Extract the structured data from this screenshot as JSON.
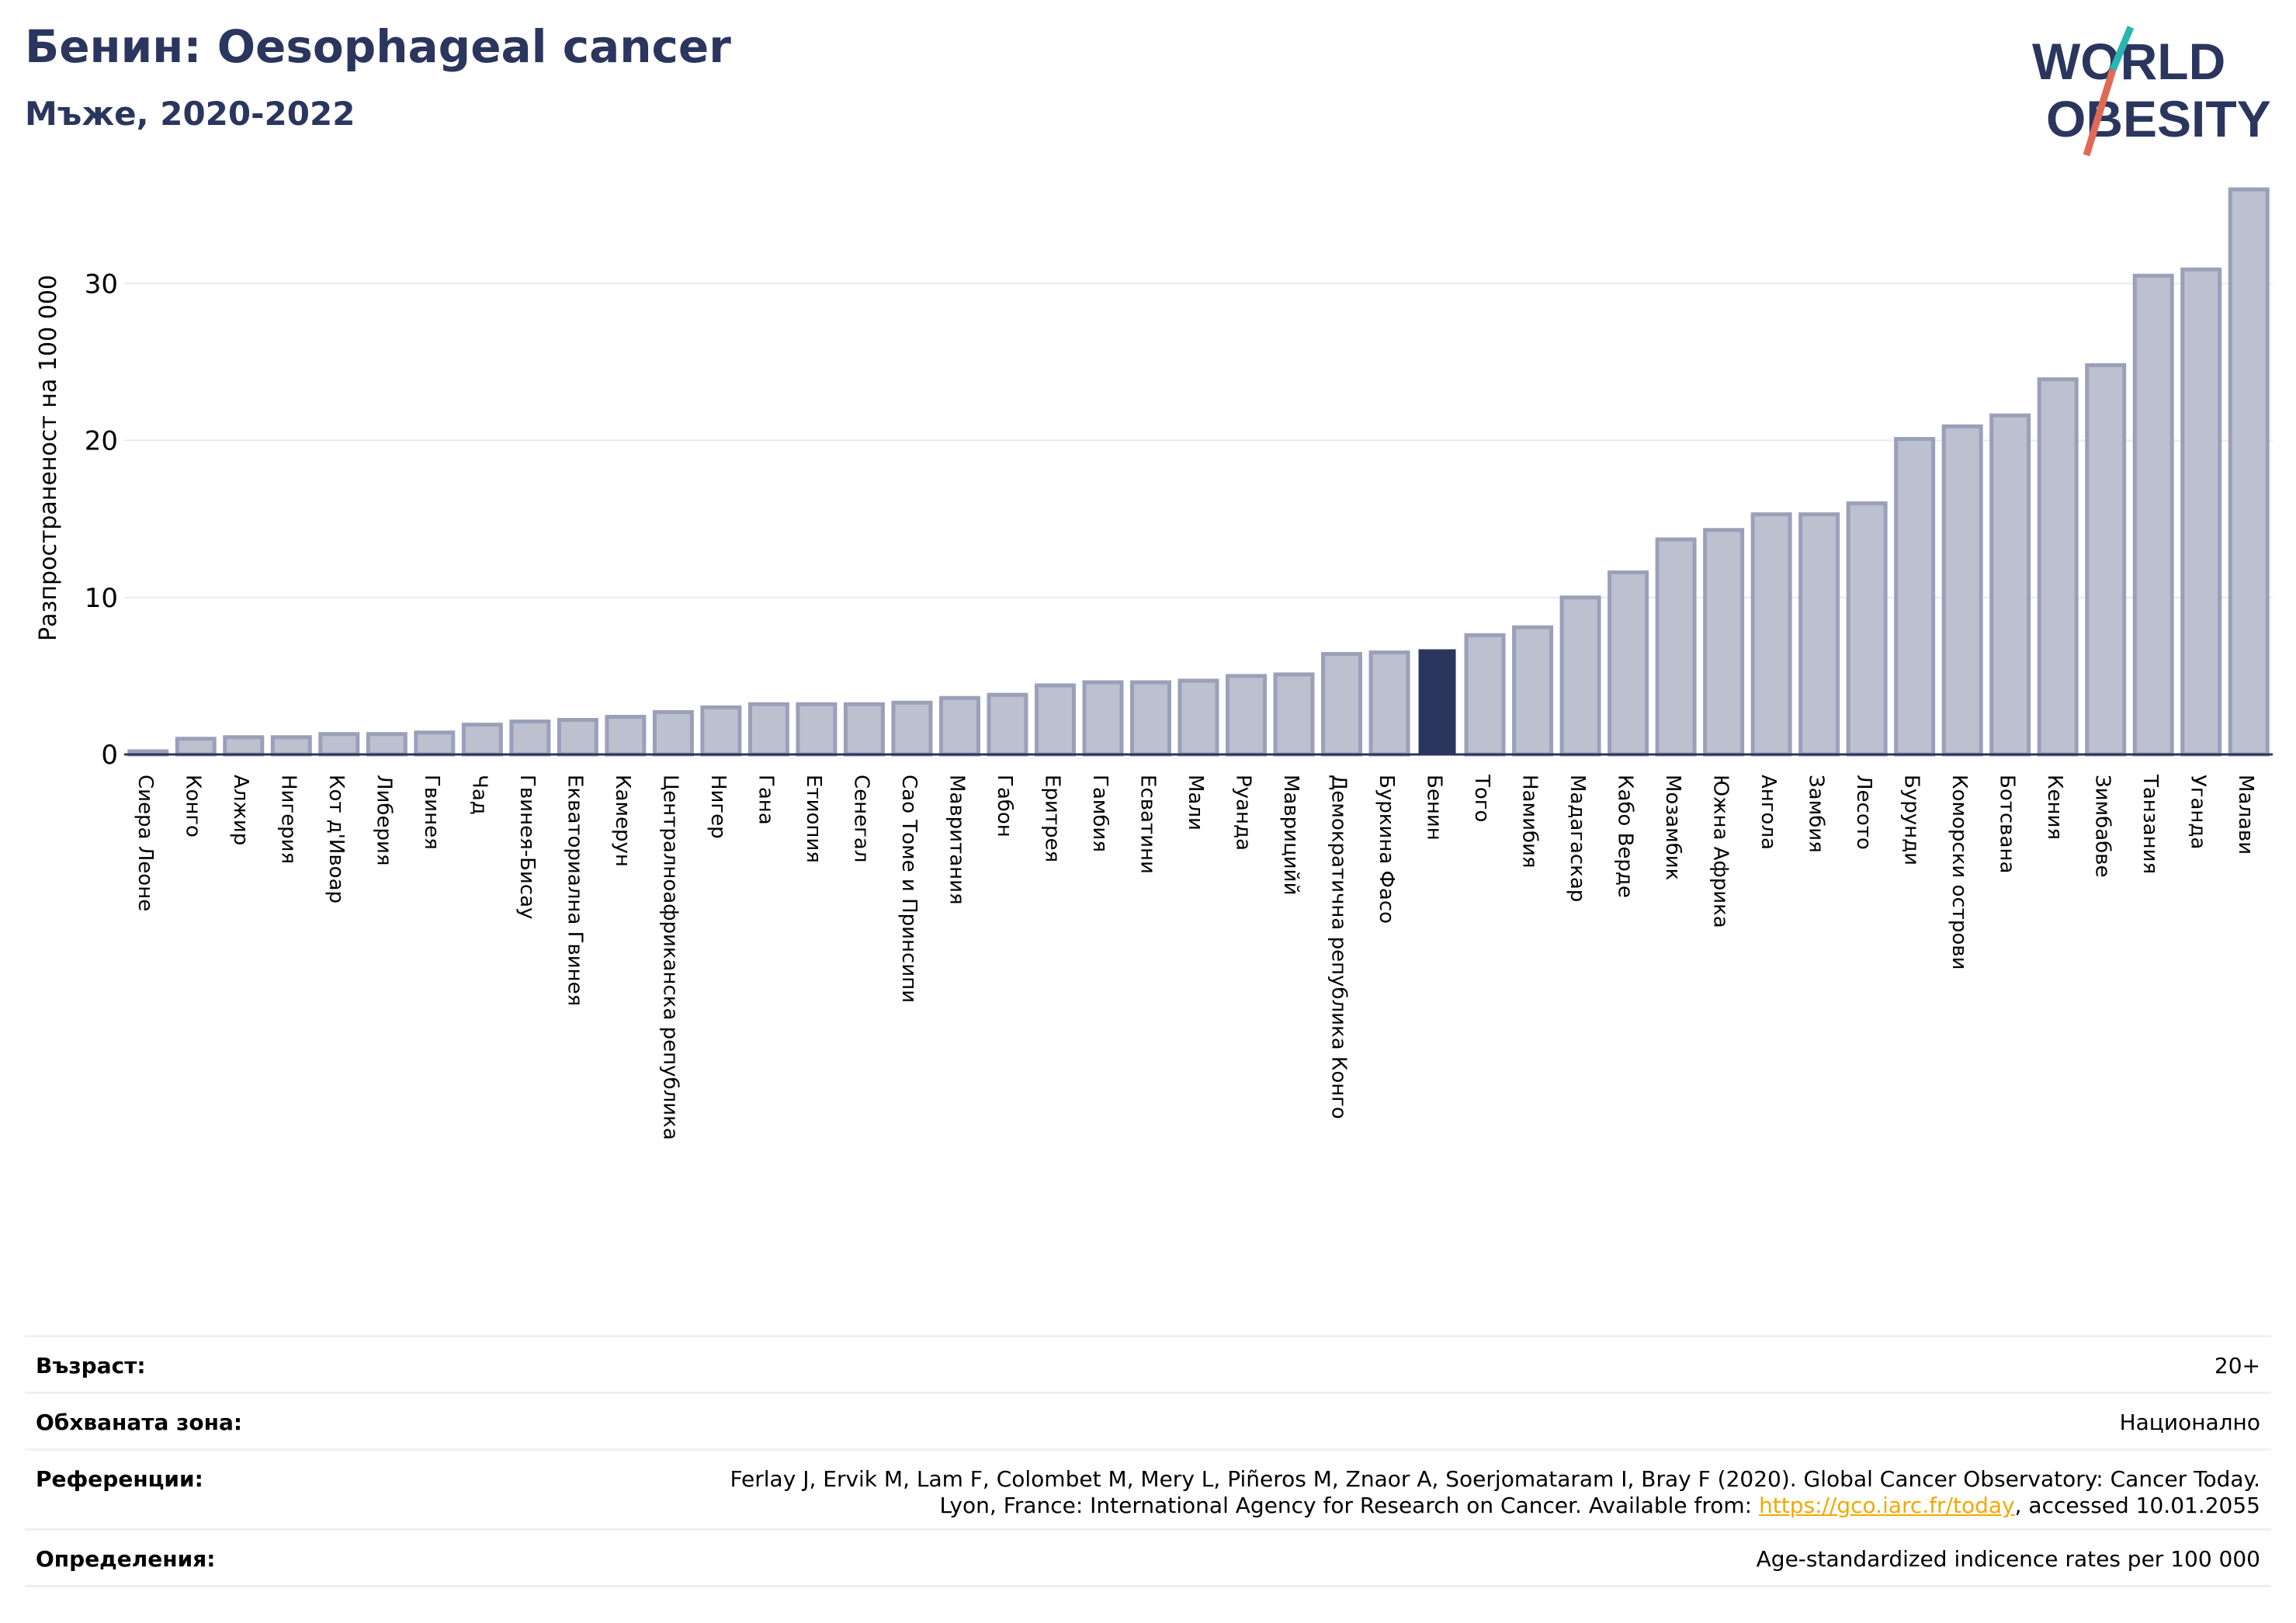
{
  "header": {
    "title": "Бенин: Oesophageal cancer",
    "subtitle": "Мъже, 2020-2022"
  },
  "logo": {
    "line1": "WORLD",
    "line2": "OBESITY"
  },
  "chart_data": {
    "type": "bar",
    "title": "",
    "xlabel": "",
    "ylabel": "Разпространеност  на 100 000",
    "ylim": [
      0,
      36
    ],
    "yticks": [
      0,
      10,
      20,
      30
    ],
    "grid": true,
    "highlight": "Бенин",
    "colors": {
      "bar": "#bcc0cf",
      "bar_edge": "#9aa0b8",
      "highlight": "#2b365e",
      "axis": "#2b365e",
      "grid": "#e8eaf0"
    },
    "categories": [
      "Сиера Леоне",
      "Конго",
      "Алжир",
      "Нигерия",
      "Кот д'Ивоар",
      "Либерия",
      "Гвинея",
      "Чад",
      "Гвинея-Бисау",
      "Екваториална Гвинея",
      "Камерун",
      "Централноафриканска република",
      "Нигер",
      "Гана",
      "Етиопия",
      "Сенегал",
      "Сао Томе и Принсипи",
      "Мавритания",
      "Габон",
      "Еритрея",
      "Гамбия",
      "Есватини",
      "Мали",
      "Руанда",
      "Маврицийй",
      "Демократична република Конго",
      "Буркина Фасо",
      "Бенин",
      "Того",
      "Намибия",
      "Мадагаскар",
      "Кабо Верде",
      "Мозамбик",
      "Южна Африка",
      "Ангола",
      "Замбия",
      "Лесото",
      "Бурунди",
      "Коморски острови",
      "Ботсвана",
      "Кения",
      "Зимбабве",
      "Танзания",
      "Уганда",
      "Малави"
    ],
    "values": [
      0.2,
      1.0,
      1.1,
      1.1,
      1.3,
      1.3,
      1.4,
      1.9,
      2.1,
      2.2,
      2.4,
      2.7,
      3.0,
      3.2,
      3.2,
      3.2,
      3.3,
      3.6,
      3.8,
      4.4,
      4.6,
      4.6,
      4.7,
      5.0,
      5.1,
      6.4,
      6.5,
      6.7,
      7.6,
      8.1,
      10.0,
      11.6,
      13.7,
      14.3,
      15.3,
      15.3,
      16.0,
      20.1,
      20.9,
      21.6,
      23.9,
      24.8,
      30.5,
      30.9,
      36.0
    ]
  },
  "meta": {
    "age_label": "Възраст:",
    "age_value": "20+",
    "area_label": "Обхваната зона:",
    "area_value": "Национално",
    "ref_label": "Референции:",
    "ref_line1": "Ferlay J, Ervik M, Lam F, Colombet M, Mery L, Piñeros M, Znaor A, Soerjomataram I, Bray F (2020). Global Cancer Observatory: Cancer Today.",
    "ref_line2_pre": "Lyon, France: International Agency for Research on Cancer. Available from: ",
    "ref_link": "https://gco.iarc.fr/today",
    "ref_line2_post": ", accessed 10.01.2055",
    "def_label": "Определения:",
    "def_value": "Age-standardized indicence rates per 100 000"
  }
}
